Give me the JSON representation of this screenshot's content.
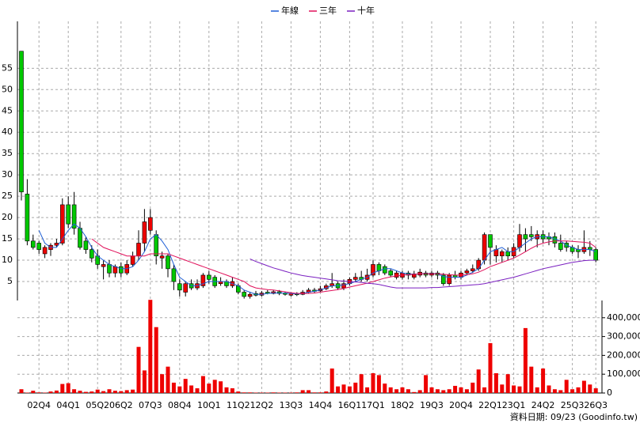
{
  "chart_data": {
    "type": "candlestick",
    "footer": "資料日期: 09/23 (Goodinfo.tw)",
    "categories": [
      null,
      null,
      null,
      "02Q4",
      null,
      null,
      null,
      null,
      "04Q1",
      null,
      null,
      null,
      null,
      "05Q2",
      null,
      null,
      null,
      "06Q2",
      null,
      null,
      null,
      null,
      "07Q3",
      null,
      null,
      null,
      null,
      "08Q4",
      null,
      null,
      null,
      null,
      "10Q1",
      null,
      null,
      null,
      null,
      "11Q2",
      null,
      null,
      null,
      "12Q2",
      null,
      null,
      null,
      null,
      "13Q3",
      null,
      null,
      null,
      null,
      "14Q4",
      null,
      null,
      null,
      null,
      "16Q1",
      null,
      null,
      null,
      "17Q1",
      null,
      null,
      null,
      null,
      "18Q2",
      null,
      null,
      null,
      null,
      "19Q3",
      null,
      null,
      null,
      null,
      "20Q4",
      null,
      null,
      null,
      null,
      "22Q1",
      null,
      null,
      null,
      "23Q1",
      null,
      null,
      null,
      null,
      "24Q2",
      null,
      null,
      null,
      null,
      "25Q3",
      null,
      null,
      null,
      "26Q3"
    ],
    "open": [
      59,
      25.5,
      14.5,
      14,
      11.5,
      12.5,
      13.5,
      14,
      23,
      23,
      17.5,
      14.5,
      12.5,
      11,
      8.5,
      9,
      7,
      8.5,
      7,
      9,
      11,
      14,
      17,
      16,
      10.5,
      11,
      8,
      4.5,
      2.5,
      4.5,
      3.5,
      4,
      6.5,
      6,
      4.5,
      5,
      4,
      4,
      2.5,
      1.5,
      2.2,
      1.8,
      2.5,
      2.2,
      2.6,
      2.3,
      1.8,
      2.2,
      2,
      2.5,
      3,
      2.8,
      3.3,
      4,
      4.5,
      3.5,
      4.5,
      5.5,
      6,
      5.5,
      6.5,
      9,
      8.5,
      7.5,
      6,
      6,
      7,
      6,
      6.5,
      7,
      6.5,
      7,
      6.5,
      4.5,
      6.5,
      6,
      7,
      7.5,
      8,
      10,
      16,
      11,
      11,
      12,
      11,
      13,
      16,
      16,
      15,
      16,
      15.5,
      15.5,
      14,
      14,
      13,
      12.5,
      12,
      13,
      12.5
    ],
    "high": [
      59,
      29,
      16,
      14.5,
      13.5,
      14,
      15,
      24.5,
      25,
      26,
      19,
      15.5,
      13.5,
      12.5,
      10,
      10,
      9,
      9.5,
      10,
      12,
      17,
      22,
      22,
      17,
      12,
      11.5,
      9,
      5.5,
      5,
      5.5,
      5.5,
      7,
      7.5,
      6.5,
      6,
      5.5,
      6,
      4.5,
      3,
      2.5,
      2.8,
      2.8,
      3,
      3,
      3,
      2.6,
      2.5,
      2.5,
      3,
      3.5,
      3.5,
      4,
      4.5,
      7,
      5,
      5.5,
      6,
      7,
      7.5,
      8,
      10,
      9.5,
      9,
      8,
      7.5,
      7.5,
      7.5,
      7.5,
      8,
      7.5,
      7.5,
      7.5,
      7,
      7,
      7.5,
      7.5,
      8,
      9,
      10.5,
      16.5,
      16,
      13.5,
      12.5,
      13,
      14,
      18.5,
      17.5,
      18,
      17,
      17,
      16.5,
      16.5,
      16,
      14.5,
      13.5,
      13.5,
      17,
      14.5,
      13
    ],
    "low": [
      24,
      13.5,
      12.5,
      11.5,
      10.5,
      11,
      13,
      13.5,
      17.5,
      16,
      12.5,
      11.5,
      9.5,
      8,
      5.5,
      6,
      6,
      6,
      6.5,
      8.5,
      10,
      12,
      16,
      9,
      8,
      6,
      3,
      1.5,
      1.5,
      3,
      3,
      3.5,
      4.5,
      3.5,
      4,
      3.5,
      3.5,
      2,
      1,
      1,
      1.5,
      1.5,
      2,
      2,
      1.8,
      1.7,
      1.5,
      1.6,
      1.8,
      2.2,
      2.3,
      2.5,
      3,
      3.5,
      3,
      3,
      4,
      5,
      5,
      5,
      6,
      6.5,
      6.5,
      6,
      5.5,
      5.5,
      5.5,
      5.5,
      6,
      6,
      6,
      5.5,
      4,
      4,
      5.5,
      5.5,
      6.5,
      7,
      7.5,
      9,
      9,
      9.5,
      9.5,
      10,
      10.5,
      12,
      12,
      14.5,
      13,
      14,
      13.5,
      13,
      12,
      12,
      11.5,
      10.5,
      11.5,
      11,
      9.5
    ],
    "close": [
      26,
      14.5,
      13,
      12.5,
      13,
      13.5,
      14,
      23,
      18.5,
      17.5,
      13,
      12.5,
      10.5,
      9,
      9,
      7,
      8.5,
      7,
      9,
      11,
      14,
      19,
      20,
      11,
      11,
      8,
      5,
      3,
      4.5,
      3.5,
      4.5,
      6.5,
      5.5,
      4,
      5,
      4,
      5,
      2.5,
      1.5,
      2,
      1.8,
      2.3,
      2.2,
      2.6,
      2.2,
      2,
      2.2,
      1.9,
      2.5,
      3,
      2.7,
      3.3,
      4,
      4.5,
      3.5,
      4.5,
      5.5,
      6,
      5.5,
      6.5,
      9,
      7.5,
      7,
      6.5,
      7,
      7,
      6.5,
      6.8,
      7.2,
      6.5,
      7,
      6.5,
      4.5,
      6.5,
      6,
      7,
      7.5,
      8,
      10,
      16,
      13,
      12.5,
      12,
      11,
      13,
      16,
      15,
      15.5,
      16,
      15,
      15,
      14,
      12.5,
      13,
      12,
      12,
      13,
      12.5,
      10
    ],
    "up_color": "#ee0000",
    "down_color": "#00c800",
    "ylim": [
      0,
      66
    ],
    "yticks": [
      5,
      10,
      15,
      20,
      25,
      30,
      35,
      40,
      45,
      50,
      55
    ],
    "series": [
      {
        "name": "年線",
        "color": "#1f5fd6",
        "values": [
          null,
          null,
          null,
          17,
          14,
          13,
          13,
          15,
          17,
          18.5,
          17.5,
          15.5,
          13,
          11,
          10,
          9,
          8.5,
          8,
          8,
          8.5,
          10,
          12,
          15,
          16,
          14.5,
          12.5,
          9,
          6,
          5,
          4,
          4,
          4.5,
          5,
          5,
          5,
          5,
          4.5,
          4,
          3,
          2.5,
          2,
          2,
          2.2,
          2.3,
          2.3,
          2.3,
          2.2,
          2.1,
          2.2,
          2.5,
          2.7,
          3,
          3.5,
          4,
          4,
          4.2,
          4.5,
          5,
          5.5,
          6,
          7,
          7.5,
          8,
          8,
          7.5,
          7,
          6.8,
          6.7,
          6.8,
          6.8,
          6.8,
          6.8,
          6.2,
          6,
          6,
          6,
          6.5,
          7.2,
          8,
          10,
          12,
          12.5,
          13,
          12,
          12,
          13,
          14,
          15,
          15.5,
          15.5,
          15.5,
          15,
          14.5,
          13.5,
          13,
          12.5,
          12.5,
          12.5,
          12
        ]
      },
      {
        "name": "三年",
        "color": "#e0105a",
        "values": [
          null,
          null,
          null,
          null,
          null,
          null,
          null,
          null,
          null,
          null,
          null,
          null,
          15,
          14,
          13,
          12.5,
          12,
          11.5,
          11,
          11,
          11,
          11,
          11.5,
          11.5,
          11.5,
          11.5,
          11,
          10.5,
          10,
          9.5,
          9,
          8.5,
          8,
          7.5,
          7,
          6.5,
          6,
          5.5,
          5,
          4,
          3.5,
          3.3,
          3.1,
          3,
          2.8,
          2.6,
          2.4,
          2.2,
          2.2,
          2.2,
          2.3,
          2.5,
          2.7,
          2.9,
          3.1,
          3.4,
          3.7,
          4,
          4.3,
          4.6,
          5,
          5.4,
          5.8,
          6.1,
          6.3,
          6.5,
          6.6,
          6.7,
          6.8,
          6.8,
          6.8,
          6.8,
          6.7,
          6.6,
          6.5,
          6.5,
          6.6,
          6.8,
          7.2,
          7.8,
          8.5,
          9,
          9.5,
          10,
          10.5,
          11.2,
          12,
          12.8,
          13.5,
          14,
          14.3,
          14.5,
          14.5,
          14.5,
          14.4,
          14.3,
          14.2,
          14,
          13
        ]
      },
      {
        "name": "十年",
        "color": "#7a1fc0",
        "values": [
          null,
          null,
          null,
          null,
          null,
          null,
          null,
          null,
          null,
          null,
          null,
          null,
          null,
          null,
          null,
          null,
          null,
          null,
          null,
          null,
          null,
          null,
          null,
          null,
          null,
          null,
          null,
          null,
          null,
          null,
          null,
          null,
          null,
          null,
          null,
          null,
          null,
          null,
          null,
          10.3,
          9.7,
          9.2,
          8.7,
          8.2,
          7.8,
          7.4,
          7,
          6.7,
          6.4,
          6.2,
          6,
          5.8,
          5.6,
          5.4,
          5.2,
          5.1,
          5,
          4.9,
          4.8,
          4.6,
          4.5,
          4.3,
          4,
          3.7,
          3.5,
          3.5,
          3.5,
          3.5,
          3.5,
          3.5,
          3.6,
          3.6,
          3.7,
          3.8,
          3.9,
          4,
          4.1,
          4.2,
          4.3,
          4.5,
          4.8,
          5.1,
          5.4,
          5.7,
          6,
          6.4,
          6.8,
          7.2,
          7.6,
          8,
          8.3,
          8.6,
          8.9,
          9.2,
          9.5,
          9.7,
          9.9,
          10,
          10
        ]
      }
    ],
    "volume": {
      "color": "#ee0000",
      "y2lim": [
        0,
        500000
      ],
      "y2ticks": [
        0,
        {
          "value": 100000,
          "label": "100,000"
        },
        {
          "value": 200000,
          "label": "200,000"
        },
        {
          "value": 300000,
          "label": "300,000"
        },
        {
          "value": 400000,
          "label": "400,000"
        }
      ],
      "values": [
        20000,
        2000,
        12000,
        3000,
        2000,
        8000,
        13000,
        48000,
        52000,
        20000,
        12000,
        6000,
        8000,
        18000,
        10000,
        20000,
        12000,
        10000,
        15000,
        18000,
        245000,
        120000,
        495000,
        350000,
        100000,
        140000,
        55000,
        35000,
        75000,
        40000,
        25000,
        90000,
        50000,
        70000,
        62000,
        30000,
        25000,
        8000,
        3000,
        3000,
        2000,
        2000,
        2000,
        3000,
        2000,
        2000,
        2000,
        3000,
        15000,
        15000,
        3000,
        3000,
        8000,
        130000,
        35000,
        45000,
        35000,
        55000,
        100000,
        30000,
        105000,
        95000,
        50000,
        30000,
        20000,
        30000,
        20000,
        5000,
        15000,
        95000,
        30000,
        20000,
        15000,
        20000,
        38000,
        30000,
        20000,
        55000,
        125000,
        30000,
        265000,
        105000,
        45000,
        100000,
        40000,
        35000,
        345000,
        140000,
        30000,
        130000,
        40000,
        20000,
        15000,
        70000,
        20000,
        30000,
        65000,
        45000,
        25000
      ]
    },
    "grid": true
  }
}
